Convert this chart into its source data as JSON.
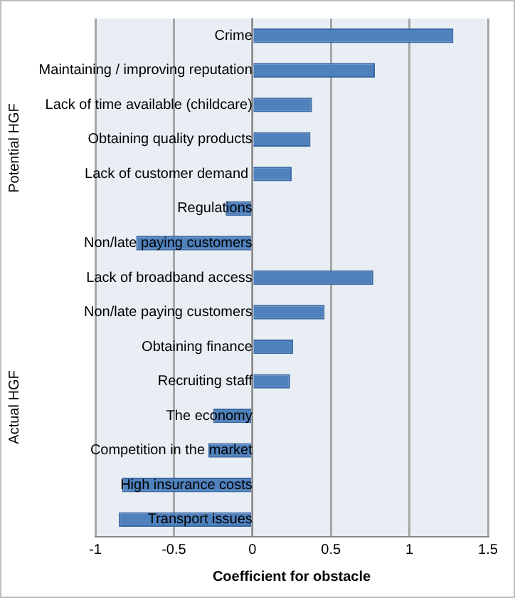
{
  "chart_data": {
    "type": "bar",
    "orientation": "horizontal",
    "xlabel": "Coefficient for obstacle",
    "categories": [
      "Crime",
      "Maintaining / improving reputation",
      "Lack of time available (childcare)",
      "Obtaining quality products",
      "Lack of customer demand ",
      "Regulations",
      "Non/late paying customers",
      "Lack of broadband access",
      "Non/late paying customers",
      "Obtaining finance",
      "Recruiting staff",
      "The economy",
      "Competition in the market",
      "High insurance costs",
      "Transport issues"
    ],
    "values": [
      1.28,
      0.78,
      0.38,
      0.37,
      0.25,
      -0.17,
      -0.74,
      0.77,
      0.46,
      0.26,
      0.24,
      -0.25,
      -0.28,
      -0.83,
      -0.85
    ],
    "color": "#4f81bd",
    "xlim": [
      -1,
      1.5
    ],
    "xticks": [
      -1,
      -0.5,
      0,
      0.5,
      1,
      1.5
    ],
    "grid": "x",
    "legend": false,
    "annotations": [
      "Potential HGF",
      "Actual HGF"
    ]
  }
}
